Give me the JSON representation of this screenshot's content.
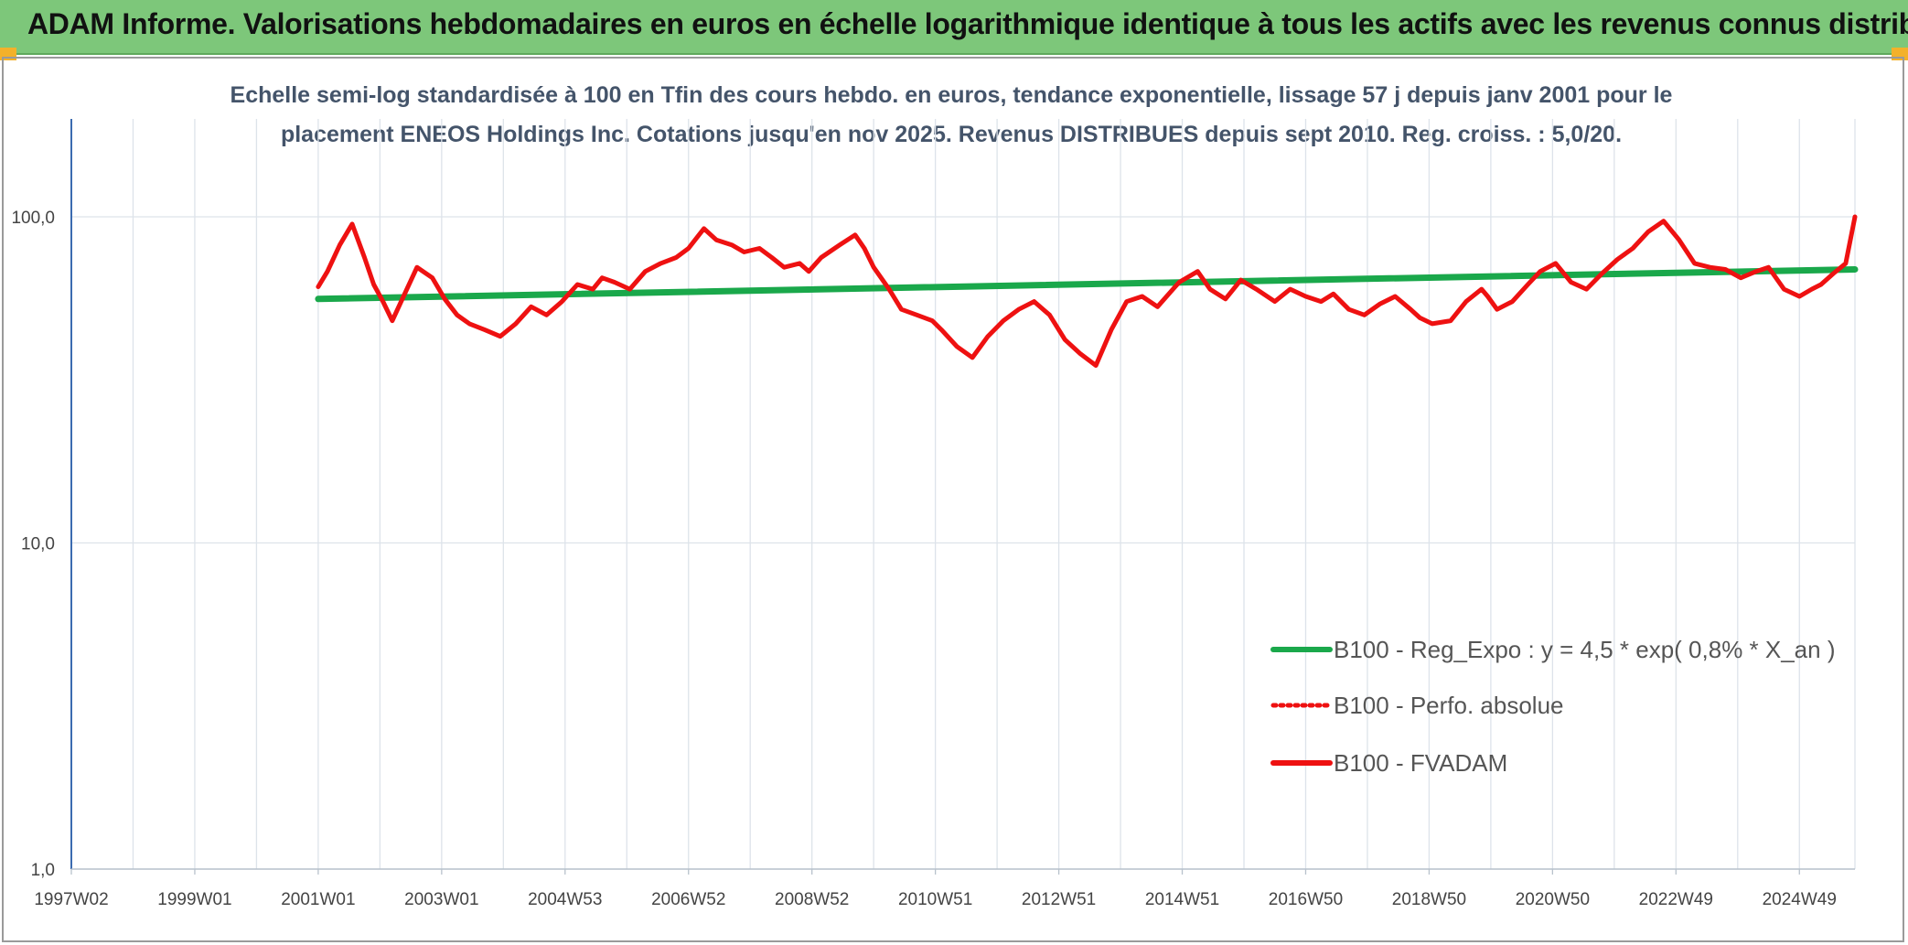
{
  "header": {
    "title": "ADAM Informe. Valorisations hebdomadaires en euros en échelle logarithmique identique à tous les actifs avec les revenus connus distribués"
  },
  "colors": {
    "header_bg": "#7dc77a",
    "corner": "#f3b12a",
    "trend_line": "#1aa84b",
    "fvadam_line": "#ee1111",
    "grid": "#dde3ea",
    "axis": "#3b6bb0"
  },
  "chart_data": {
    "type": "line",
    "title_line1": "Echelle semi-log standardisée à 100 en Tfin des cours hebdo. en euros, tendance exponentielle, lissage 57 j depuis janv 2001 pour le",
    "title_line2": "placement ENEOS Holdings Inc. Cotations jusqu'en nov 2025. Revenus DISTRIBUES depuis sept 2010. Reg. croiss. : 5,0/20.",
    "y_scale": "log",
    "ylim": [
      1,
      200
    ],
    "y_ticks": [
      {
        "value": 1,
        "label": "1,0"
      },
      {
        "value": 10,
        "label": "10,0"
      },
      {
        "value": 100,
        "label": "100,0"
      }
    ],
    "xlim": [
      1997.0,
      2025.9
    ],
    "x_ticks": [
      {
        "value": 1997.0,
        "label": "1997W02"
      },
      {
        "value": 1999.0,
        "label": "1999W01"
      },
      {
        "value": 2001.0,
        "label": "2001W01"
      },
      {
        "value": 2003.0,
        "label": "2003W01"
      },
      {
        "value": 2005.0,
        "label": "2004W53"
      },
      {
        "value": 2007.0,
        "label": "2006W52"
      },
      {
        "value": 2009.0,
        "label": "2008W52"
      },
      {
        "value": 2011.0,
        "label": "2010W51"
      },
      {
        "value": 2013.0,
        "label": "2012W51"
      },
      {
        "value": 2015.0,
        "label": "2014W51"
      },
      {
        "value": 2017.0,
        "label": "2016W50"
      },
      {
        "value": 2019.0,
        "label": "2018W50"
      },
      {
        "value": 2021.0,
        "label": "2020W50"
      },
      {
        "value": 2023.0,
        "label": "2022W49"
      },
      {
        "value": 2025.0,
        "label": "2024W49"
      }
    ],
    "grid": true,
    "legend_position": "bottom-right",
    "series": [
      {
        "name": "B100 - Reg_Expo : y = 4,5 * exp( 0,8% *  X_an )",
        "color": "#1aa84b",
        "style": "solid",
        "x": [
          2001.0,
          2025.9
        ],
        "y": [
          56,
          69
        ]
      },
      {
        "name": "B100 - Perfo. absolue",
        "color": "#ee1111",
        "style": "dotted",
        "x": [],
        "y": []
      },
      {
        "name": "B100 - FVADAM",
        "color": "#ee1111",
        "style": "solid",
        "x": [
          2001.0,
          2001.15,
          2001.35,
          2001.55,
          2001.75,
          2001.9,
          2002.05,
          2002.2,
          2002.4,
          2002.6,
          2002.85,
          2003.05,
          2003.25,
          2003.45,
          2003.7,
          2003.95,
          2004.2,
          2004.45,
          2004.7,
          2004.95,
          2005.2,
          2005.45,
          2005.6,
          2005.8,
          2006.05,
          2006.3,
          2006.55,
          2006.8,
          2007.0,
          2007.25,
          2007.45,
          2007.7,
          2007.9,
          2008.15,
          2008.35,
          2008.55,
          2008.8,
          2008.95,
          2009.15,
          2009.45,
          2009.7,
          2009.85,
          2010.0,
          2010.25,
          2010.45,
          2010.7,
          2010.95,
          2011.1,
          2011.35,
          2011.6,
          2011.85,
          2012.1,
          2012.35,
          2012.6,
          2012.85,
          2013.1,
          2013.35,
          2013.6,
          2013.85,
          2014.1,
          2014.35,
          2014.6,
          2014.85,
          2014.95,
          2015.25,
          2015.45,
          2015.7,
          2015.95,
          2016.2,
          2016.5,
          2016.75,
          2017.0,
          2017.25,
          2017.45,
          2017.7,
          2017.95,
          2018.2,
          2018.45,
          2018.7,
          2018.85,
          2019.05,
          2019.35,
          2019.6,
          2019.85,
          2019.95,
          2020.1,
          2020.35,
          2020.6,
          2020.8,
          2021.05,
          2021.3,
          2021.55,
          2021.8,
          2022.05,
          2022.3,
          2022.55,
          2022.8,
          2023.05,
          2023.3,
          2023.55,
          2023.8,
          2024.05,
          2024.3,
          2024.5,
          2024.75,
          2025.0,
          2025.2,
          2025.35,
          2025.55,
          2025.75,
          2025.9
        ],
        "y": [
          61,
          68,
          82,
          95,
          75,
          62,
          55,
          48,
          58,
          70,
          65,
          56,
          50,
          47,
          45,
          43,
          47,
          53,
          50,
          55,
          62,
          60,
          65,
          63,
          60,
          68,
          72,
          75,
          80,
          92,
          85,
          82,
          78,
          80,
          75,
          70,
          72,
          68,
          75,
          82,
          88,
          80,
          70,
          60,
          52,
          50,
          48,
          45,
          40,
          37,
          43,
          48,
          52,
          55,
          50,
          42,
          38,
          35,
          45,
          55,
          57,
          53,
          60,
          63,
          68,
          60,
          56,
          64,
          60,
          55,
          60,
          57,
          55,
          58,
          52,
          50,
          54,
          57,
          52,
          49,
          47,
          48,
          55,
          60,
          57,
          52,
          55,
          62,
          68,
          72,
          63,
          60,
          67,
          74,
          80,
          90,
          97,
          85,
          72,
          70,
          69,
          65,
          68,
          70,
          60,
          57,
          60,
          62,
          67,
          72,
          100
        ]
      }
    ]
  }
}
